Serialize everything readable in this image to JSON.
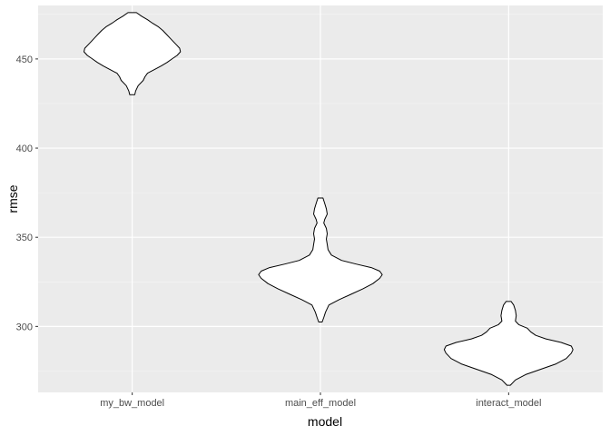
{
  "chart_data": {
    "type": "violin",
    "title": "",
    "xlabel": "model",
    "ylabel": "rmse",
    "categories": [
      "my_bw_model",
      "main_eff_model",
      "interact_model"
    ],
    "ylim": [
      263,
      480
    ],
    "y_ticks": [
      300,
      350,
      400,
      450
    ],
    "grid": true,
    "colors": {
      "panel_bg": "#ebebeb",
      "grid_major": "#ffffff",
      "grid_minor": "#f5f5f5",
      "violin_fill": "#ffffff",
      "violin_stroke": "#000000"
    },
    "violins": [
      {
        "category": "my_bw_model",
        "profile": [
          {
            "y": 430,
            "w": 0.03
          },
          {
            "y": 432,
            "w": 0.04
          },
          {
            "y": 435,
            "w": 0.07
          },
          {
            "y": 438,
            "w": 0.13
          },
          {
            "y": 440,
            "w": 0.15
          },
          {
            "y": 442,
            "w": 0.18
          },
          {
            "y": 444,
            "w": 0.26
          },
          {
            "y": 446,
            "w": 0.34
          },
          {
            "y": 448,
            "w": 0.41
          },
          {
            "y": 450,
            "w": 0.47
          },
          {
            "y": 452,
            "w": 0.53
          },
          {
            "y": 454,
            "w": 0.57
          },
          {
            "y": 456,
            "w": 0.56
          },
          {
            "y": 458,
            "w": 0.52
          },
          {
            "y": 460,
            "w": 0.48
          },
          {
            "y": 462,
            "w": 0.44
          },
          {
            "y": 464,
            "w": 0.4
          },
          {
            "y": 466,
            "w": 0.36
          },
          {
            "y": 468,
            "w": 0.31
          },
          {
            "y": 470,
            "w": 0.24
          },
          {
            "y": 472,
            "w": 0.18
          },
          {
            "y": 474,
            "w": 0.11
          },
          {
            "y": 476,
            "w": 0.05
          }
        ]
      },
      {
        "category": "main_eff_model",
        "profile": [
          {
            "y": 302.5,
            "w": 0.02
          },
          {
            "y": 305,
            "w": 0.04
          },
          {
            "y": 308,
            "w": 0.06
          },
          {
            "y": 312,
            "w": 0.1
          },
          {
            "y": 315,
            "w": 0.22
          },
          {
            "y": 318,
            "w": 0.36
          },
          {
            "y": 321,
            "w": 0.5
          },
          {
            "y": 324,
            "w": 0.62
          },
          {
            "y": 327,
            "w": 0.7
          },
          {
            "y": 329,
            "w": 0.73
          },
          {
            "y": 331,
            "w": 0.7
          },
          {
            "y": 333,
            "w": 0.6
          },
          {
            "y": 335,
            "w": 0.42
          },
          {
            "y": 337,
            "w": 0.25
          },
          {
            "y": 340,
            "w": 0.13
          },
          {
            "y": 343,
            "w": 0.09
          },
          {
            "y": 346,
            "w": 0.08
          },
          {
            "y": 349,
            "w": 0.07
          },
          {
            "y": 352,
            "w": 0.08
          },
          {
            "y": 355,
            "w": 0.07
          },
          {
            "y": 358,
            "w": 0.04
          },
          {
            "y": 360,
            "w": 0.05
          },
          {
            "y": 363,
            "w": 0.08
          },
          {
            "y": 366,
            "w": 0.07
          },
          {
            "y": 369,
            "w": 0.05
          },
          {
            "y": 372,
            "w": 0.03
          }
        ]
      },
      {
        "category": "interact_model",
        "profile": [
          {
            "y": 267,
            "w": 0.02
          },
          {
            "y": 270,
            "w": 0.08
          },
          {
            "y": 273,
            "w": 0.2
          },
          {
            "y": 276,
            "w": 0.38
          },
          {
            "y": 279,
            "w": 0.56
          },
          {
            "y": 282,
            "w": 0.68
          },
          {
            "y": 285,
            "w": 0.74
          },
          {
            "y": 287,
            "w": 0.76
          },
          {
            "y": 289,
            "w": 0.74
          },
          {
            "y": 291,
            "w": 0.62
          },
          {
            "y": 293,
            "w": 0.44
          },
          {
            "y": 295,
            "w": 0.32
          },
          {
            "y": 297,
            "w": 0.26
          },
          {
            "y": 299,
            "w": 0.22
          },
          {
            "y": 301,
            "w": 0.12
          },
          {
            "y": 303,
            "w": 0.08
          },
          {
            "y": 306,
            "w": 0.09
          },
          {
            "y": 309,
            "w": 0.08
          },
          {
            "y": 312,
            "w": 0.06
          },
          {
            "y": 314,
            "w": 0.03
          }
        ]
      }
    ]
  }
}
